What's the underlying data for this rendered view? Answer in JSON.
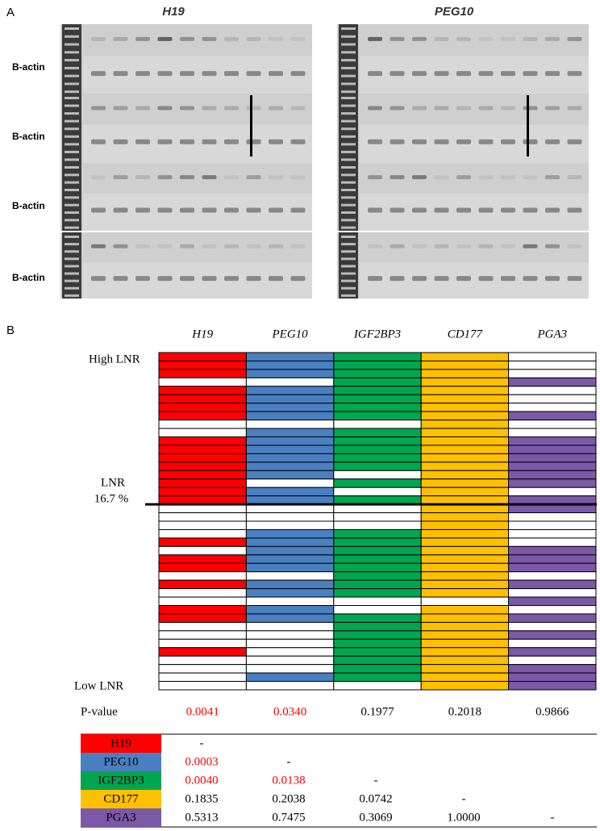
{
  "panel_a": {
    "label": "A",
    "genes": [
      "H19",
      "PEG10"
    ],
    "loading_labels": [
      "B-actin",
      "B-actin",
      "B-actin",
      "B-actin"
    ]
  },
  "panel_b": {
    "label": "B",
    "genes": [
      {
        "name": "H19",
        "color": "#ff0000",
        "cells": [
          1,
          1,
          1,
          0,
          1,
          1,
          1,
          1,
          0,
          0,
          1,
          1,
          1,
          1,
          1,
          1,
          1,
          1,
          0,
          0,
          0,
          0,
          1,
          0,
          1,
          1,
          0,
          1,
          0,
          0,
          1,
          1,
          0,
          0,
          0,
          1,
          0,
          0,
          0,
          0
        ]
      },
      {
        "name": "PEG10",
        "color": "#4a7fc1",
        "cells": [
          1,
          1,
          1,
          0,
          1,
          1,
          1,
          1,
          0,
          1,
          1,
          1,
          1,
          1,
          1,
          0,
          1,
          1,
          0,
          0,
          0,
          1,
          1,
          1,
          1,
          1,
          0,
          1,
          1,
          0,
          1,
          1,
          0,
          0,
          0,
          0,
          0,
          0,
          1,
          0
        ]
      },
      {
        "name": "IGF2BP3",
        "color": "#00a650",
        "cells": [
          1,
          1,
          1,
          1,
          1,
          1,
          1,
          1,
          0,
          1,
          1,
          1,
          1,
          1,
          0,
          1,
          0,
          1,
          0,
          0,
          0,
          1,
          1,
          1,
          1,
          1,
          1,
          1,
          1,
          0,
          0,
          1,
          1,
          1,
          1,
          1,
          1,
          1,
          1,
          0
        ]
      },
      {
        "name": "CD177",
        "color": "#ffc000",
        "cells": [
          1,
          1,
          1,
          1,
          1,
          1,
          1,
          1,
          1,
          1,
          1,
          1,
          1,
          1,
          1,
          1,
          1,
          1,
          1,
          1,
          1,
          1,
          1,
          1,
          1,
          1,
          1,
          1,
          1,
          0,
          1,
          1,
          1,
          1,
          1,
          1,
          1,
          1,
          1,
          1
        ]
      },
      {
        "name": "PGA3",
        "color": "#7b58a8",
        "cells": [
          0,
          0,
          0,
          1,
          0,
          0,
          0,
          1,
          0,
          0,
          1,
          1,
          1,
          1,
          1,
          1,
          0,
          1,
          1,
          0,
          0,
          0,
          0,
          1,
          1,
          1,
          0,
          1,
          0,
          1,
          0,
          1,
          0,
          1,
          0,
          1,
          0,
          1,
          1,
          1
        ]
      }
    ],
    "high_label": "High LNR",
    "cutoff_label": [
      "LNR",
      "16.7 %"
    ],
    "low_label": "Low LNR",
    "pvalue_label": "P-value",
    "pvalues": [
      {
        "text": "0.0041",
        "color": "#ff0000"
      },
      {
        "text": "0.0340",
        "color": "#ff0000"
      },
      {
        "text": "0.1977",
        "color": "#000000"
      },
      {
        "text": "0.2018",
        "color": "#000000"
      },
      {
        "text": "0.9866",
        "color": "#000000"
      }
    ],
    "correlation": {
      "rows": [
        {
          "name": "H19",
          "values": [
            {
              "text": "-",
              "color": "#000000"
            }
          ]
        },
        {
          "name": "PEG10",
          "values": [
            {
              "text": "0.0003",
              "color": "#ff0000"
            },
            {
              "text": "-",
              "color": "#000000"
            }
          ]
        },
        {
          "name": "IGF2BP3",
          "values": [
            {
              "text": "0.0040",
              "color": "#ff0000"
            },
            {
              "text": "0.0138",
              "color": "#ff0000"
            },
            {
              "text": "-",
              "color": "#000000"
            }
          ]
        },
        {
          "name": "CD177",
          "values": [
            {
              "text": "0.1835",
              "color": "#000000"
            },
            {
              "text": "0.2038",
              "color": "#000000"
            },
            {
              "text": "0.0742",
              "color": "#000000"
            },
            {
              "text": "-",
              "color": "#000000"
            }
          ]
        },
        {
          "name": "PGA3",
          "values": [
            {
              "text": "0.5313",
              "color": "#000000"
            },
            {
              "text": "0.7475",
              "color": "#000000"
            },
            {
              "text": "0.3069",
              "color": "#000000"
            },
            {
              "text": "1.0000",
              "color": "#000000"
            },
            {
              "text": "-",
              "color": "#000000"
            }
          ]
        }
      ]
    }
  }
}
